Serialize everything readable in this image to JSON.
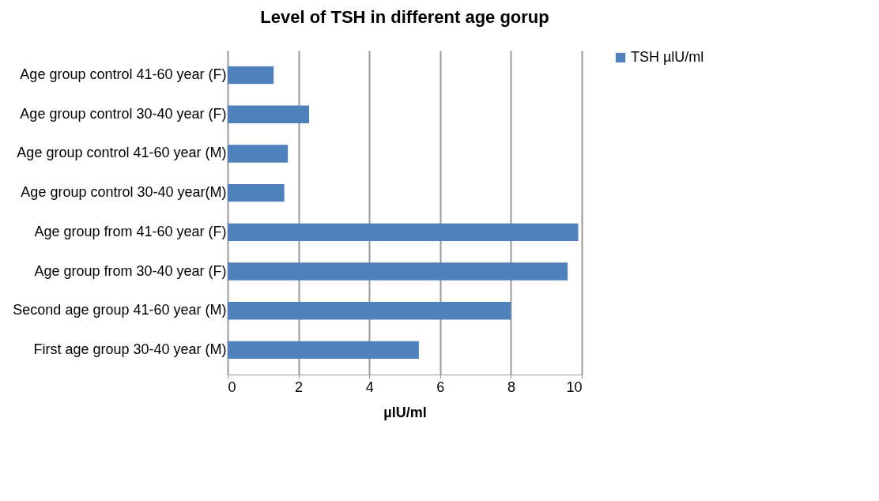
{
  "chart_data": {
    "type": "bar",
    "orientation": "horizontal",
    "title": "Level of TSH in different age gorup",
    "xlabel": "µlU/ml",
    "categories": [
      "Age group control  41-60 year (F)",
      "Age group control 30-40 year (F)",
      "Age group control 41-60 year (M)",
      "Age group control 30-40  year(M)",
      "Age group from  41-60 year (F)",
      "Age group from 30-40 year (F)",
      "Second age group 41-60 year (M)",
      "First age group  30-40  year (M)"
    ],
    "series": [
      {
        "name": "TSH  µlU/ml",
        "color": "#4f81bd",
        "values": [
          1.3,
          2.3,
          1.7,
          1.6,
          9.9,
          9.6,
          8.0,
          5.4
        ]
      }
    ],
    "xlim": [
      0,
      10
    ],
    "xticks": [
      0,
      2,
      4,
      6,
      8,
      10
    ],
    "grid": "x",
    "legend": "right"
  }
}
